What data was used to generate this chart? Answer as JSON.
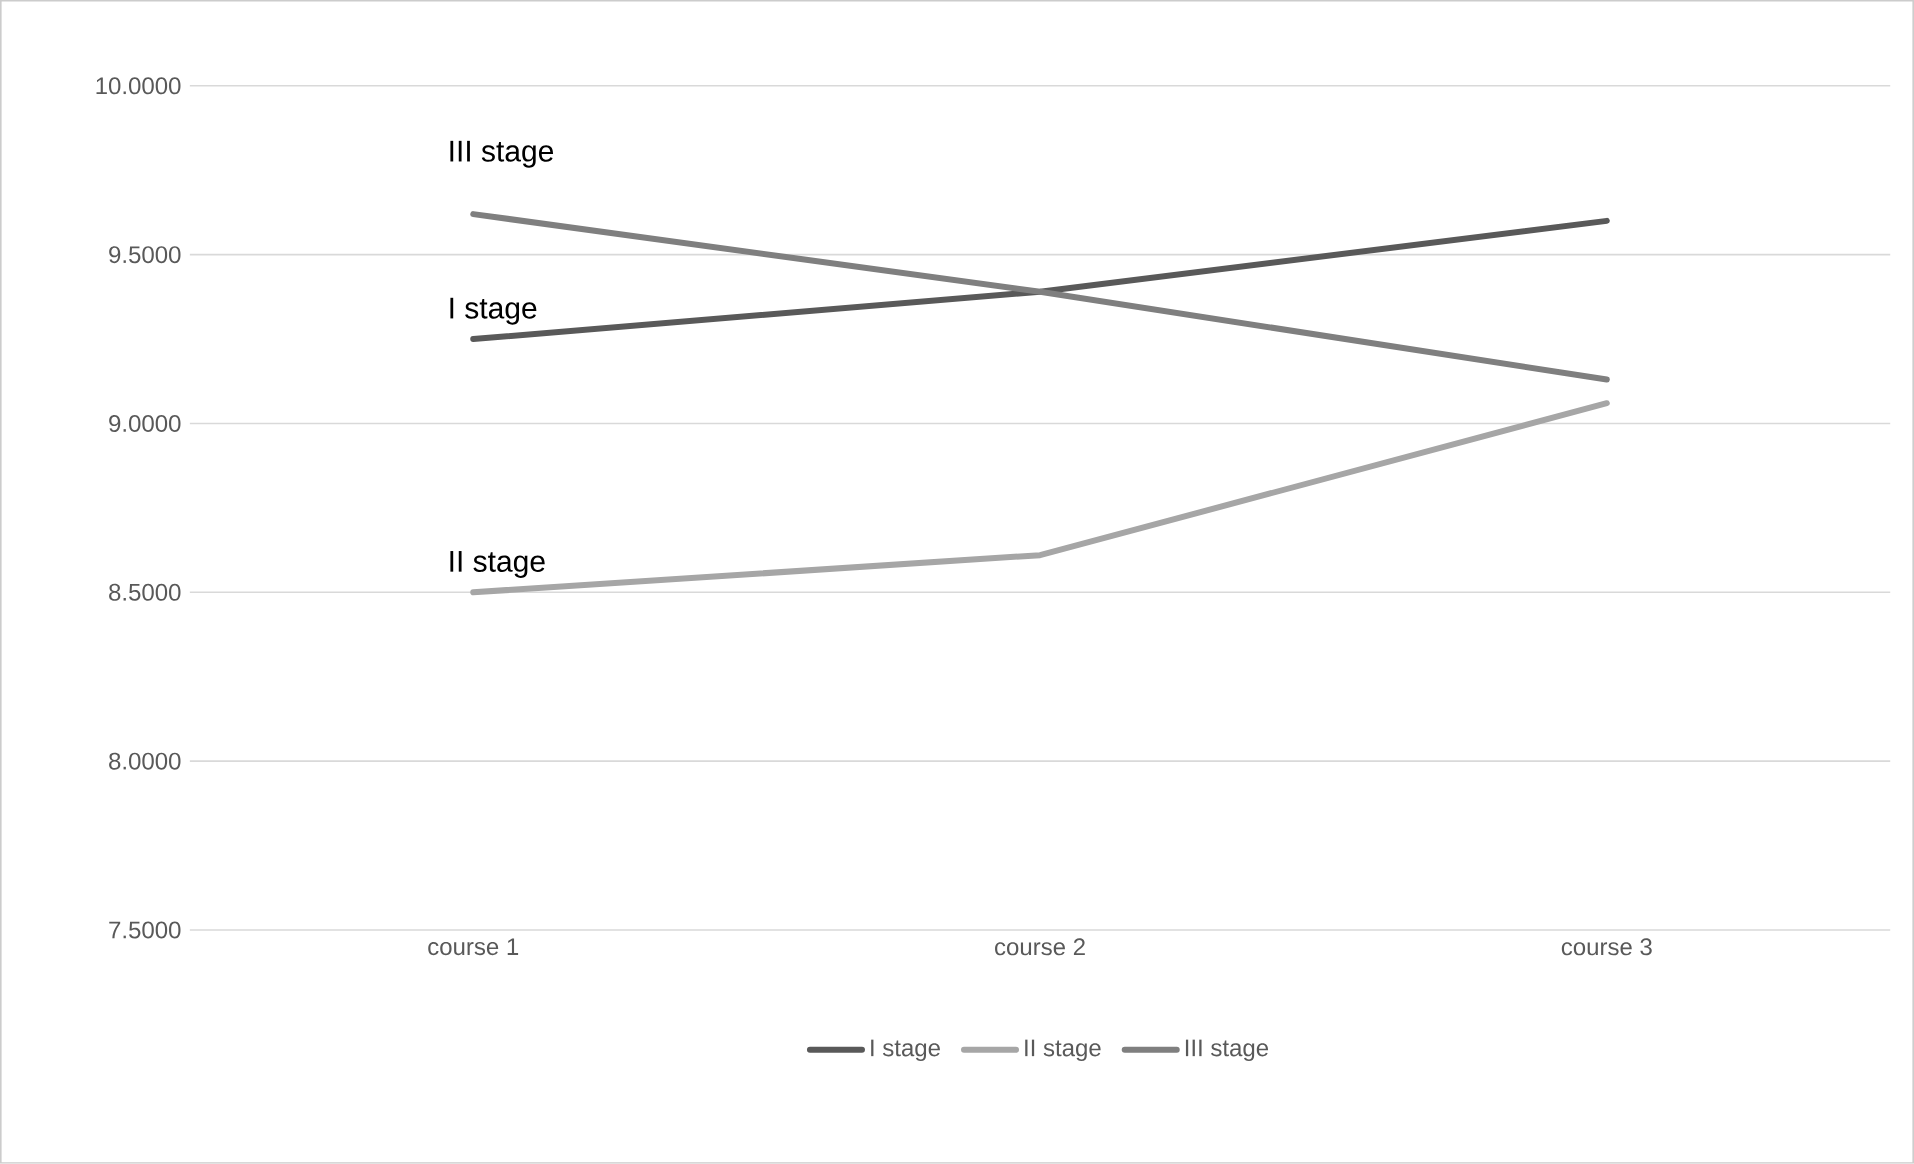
{
  "chart_data": {
    "type": "line",
    "categories": [
      "course 1",
      "course 2",
      "course 3"
    ],
    "series": [
      {
        "name": "I stage",
        "color": "#595959",
        "values": [
          9.25,
          9.39,
          9.6
        ]
      },
      {
        "name": "II stage",
        "color": "#a6a6a6",
        "values": [
          8.5,
          8.61,
          9.06
        ]
      },
      {
        "name": "III stage",
        "color": "#7f7f7f",
        "values": [
          9.62,
          9.39,
          9.13
        ]
      }
    ],
    "ylim": [
      7.5,
      10
    ],
    "yticks": [
      {
        "value": 7.5,
        "label": "7.5000"
      },
      {
        "value": 8,
        "label": "8.0000"
      },
      {
        "value": 8.5,
        "label": "8.5000"
      },
      {
        "value": 9,
        "label": "9.0000"
      },
      {
        "value": 9.5,
        "label": "9.5000"
      },
      {
        "value": 10,
        "label": "10.0000"
      }
    ],
    "grid": "y",
    "legend": "bottom",
    "marker": "none",
    "line_style": "solid"
  }
}
